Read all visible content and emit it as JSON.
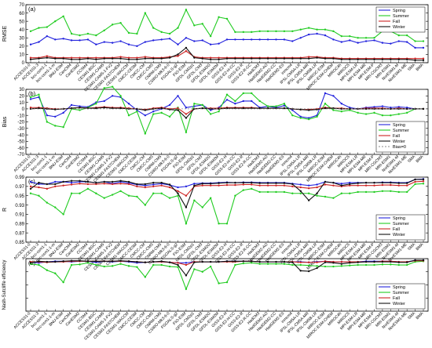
{
  "models": [
    "ACCESS1-0",
    "ACCESS1-3",
    "bcc-csm1-1",
    "bcc-csm1-1-m",
    "BNU-ESM",
    "CanCM4",
    "CanESM2",
    "CCSM4",
    "CESM1-BGC",
    "CESM1-CAM5",
    "CESM1-CAM5-1-FV2",
    "CESM1-FASTCHEM",
    "CESM1-WACCM",
    "CMCC-CESM",
    "CMCC-CM",
    "CMCC-CMS",
    "CNRM-CM5",
    "CSIRO-Mk3-6-0",
    "FGOALS-g2",
    "FIO-ESM",
    "GFDL-CM2p1",
    "GFDL-CM3",
    "GFDL-ESM2G",
    "GFDL-ESM2M",
    "GISS-E2-H",
    "GISS-E2-H-CC",
    "GISS-E2-R",
    "GISS-E2-R-CC",
    "HadCM3",
    "HadGEM2-AO",
    "HadGEM2-CC",
    "HadGEM2-ES",
    "inmcm4",
    "IPSL-CM5A-LR",
    "IPSL-CM5A-MR",
    "IPSL-CM5B-LR",
    "MIROC-ESM",
    "MIROC-ESM-CHEM",
    "MIROC4h",
    "MIROC5",
    "MPI-ESM-LR",
    "MPI-ESM-MR",
    "MPI-ESM-P",
    "MRI-CGCM3",
    "MRI-ESM1",
    "NorESM1-M",
    "NorESM1-ME",
    "SMA",
    "BMA"
  ],
  "colors": {
    "Spring": "#2222dd",
    "Summer": "#22cc22",
    "Fall": "#cc2222",
    "Winter": "#111111"
  },
  "chart_data": [
    {
      "type": "line",
      "panel": "(a)",
      "ylabel": "RMSE",
      "ylim": [
        0,
        70
      ],
      "yticks": [
        0,
        10,
        20,
        30,
        40,
        50,
        60,
        70
      ],
      "legend_position": "top-right",
      "series": [
        {
          "name": "Spring",
          "values": [
            22,
            25,
            32,
            28,
            29,
            27,
            27,
            28,
            22,
            25,
            24,
            26,
            22,
            20,
            25,
            27,
            28,
            29,
            22,
            30,
            26,
            27,
            22,
            23,
            28,
            28,
            28,
            28,
            28,
            28,
            28,
            28,
            26,
            30,
            34,
            35,
            33,
            28,
            25,
            27,
            24,
            26,
            27,
            24,
            23,
            26,
            25,
            18,
            18
          ]
        },
        {
          "name": "Summer",
          "values": [
            38,
            42,
            43,
            50,
            56,
            35,
            33,
            35,
            33,
            39,
            46,
            48,
            36,
            35,
            60,
            42,
            37,
            35,
            42,
            64,
            45,
            47,
            32,
            55,
            53,
            37,
            37,
            37,
            38,
            38,
            38,
            38,
            38,
            40,
            42,
            40,
            40,
            38,
            32,
            32,
            30,
            30,
            30,
            38,
            38,
            33,
            33,
            26,
            26
          ]
        },
        {
          "name": "Fall",
          "values": [
            6,
            6,
            8,
            6,
            6,
            6,
            6,
            6,
            6,
            6,
            6,
            7,
            6,
            6,
            7,
            6,
            6,
            7,
            8,
            14,
            7,
            6,
            6,
            6,
            6,
            6,
            6,
            6,
            6,
            6,
            6,
            6,
            6,
            6,
            7,
            7,
            6,
            6,
            5,
            5,
            5,
            5,
            5,
            5,
            5,
            5,
            5,
            5,
            5
          ]
        },
        {
          "name": "Winter",
          "values": [
            4,
            5,
            6,
            5,
            5,
            4,
            4,
            5,
            4,
            5,
            5,
            5,
            4,
            4,
            5,
            5,
            5,
            6,
            10,
            18,
            6,
            5,
            4,
            4,
            5,
            5,
            5,
            5,
            5,
            5,
            5,
            5,
            5,
            5,
            5,
            6,
            5,
            5,
            4,
            4,
            4,
            4,
            4,
            4,
            4,
            4,
            4,
            3,
            3
          ]
        }
      ]
    },
    {
      "type": "line",
      "panel": "(b)",
      "ylabel": "Bias",
      "ylim": [
        -70,
        30
      ],
      "yticks": [
        -70,
        -60,
        -50,
        -40,
        -30,
        -20,
        -10,
        0,
        10,
        20,
        30
      ],
      "legend_position": "bottom-right",
      "series": [
        {
          "name": "Spring",
          "values": [
            15,
            18,
            -10,
            -12,
            -6,
            6,
            4,
            3,
            10,
            12,
            20,
            18,
            8,
            -2,
            -10,
            -4,
            0,
            6,
            20,
            2,
            4,
            6,
            -2,
            2,
            14,
            8,
            12,
            12,
            2,
            4,
            2,
            5,
            -2,
            -12,
            -14,
            -10,
            24,
            20,
            8,
            2,
            0,
            2,
            3,
            4,
            2,
            3,
            2,
            0,
            0
          ]
        },
        {
          "name": "Summer",
          "values": [
            18,
            22,
            -20,
            -26,
            -28,
            0,
            -2,
            2,
            8,
            32,
            34,
            20,
            -10,
            -4,
            -38,
            -8,
            -6,
            -12,
            2,
            -36,
            8,
            6,
            -8,
            -4,
            22,
            12,
            24,
            24,
            12,
            4,
            4,
            8,
            -10,
            -14,
            -16,
            -12,
            8,
            -2,
            -4,
            -2,
            -6,
            -8,
            -6,
            -10,
            -10,
            -8,
            -6,
            0,
            0
          ]
        },
        {
          "name": "Fall",
          "values": [
            2,
            2,
            1,
            0,
            0,
            1,
            2,
            1,
            2,
            3,
            2,
            2,
            1,
            0,
            -1,
            1,
            2,
            0,
            1,
            -8,
            0,
            1,
            1,
            1,
            2,
            2,
            2,
            2,
            1,
            1,
            1,
            1,
            0,
            -1,
            -1,
            0,
            2,
            1,
            1,
            0,
            0,
            1,
            1,
            1,
            0,
            1,
            0,
            0,
            0
          ]
        },
        {
          "name": "Winter",
          "values": [
            0,
            1,
            0,
            -1,
            0,
            1,
            2,
            1,
            1,
            2,
            1,
            1,
            0,
            0,
            -2,
            0,
            1,
            -1,
            -2,
            -14,
            0,
            1,
            0,
            0,
            1,
            1,
            1,
            1,
            1,
            1,
            1,
            1,
            0,
            -1,
            -2,
            -1,
            1,
            1,
            0,
            0,
            0,
            0,
            0,
            0,
            0,
            0,
            0,
            0,
            0
          ]
        },
        {
          "name": "Bias=0",
          "values": [
            0,
            0,
            0,
            0,
            0,
            0,
            0,
            0,
            0,
            0,
            0,
            0,
            0,
            0,
            0,
            0,
            0,
            0,
            0,
            0,
            0,
            0,
            0,
            0,
            0,
            0,
            0,
            0,
            0,
            0,
            0,
            0,
            0,
            0,
            0,
            0,
            0,
            0,
            0,
            0,
            0,
            0,
            0,
            0,
            0,
            0,
            0,
            0,
            0
          ]
        }
      ]
    },
    {
      "type": "line",
      "panel": "(c)",
      "ylabel": "R",
      "ylim": [
        0.85,
        0.99
      ],
      "yticks": [
        0.85,
        0.87,
        0.89,
        0.91,
        0.93,
        0.95,
        0.97,
        0.99
      ],
      "legend_position": "bottom-right",
      "series": [
        {
          "name": "Spring",
          "values": [
            0.98,
            0.975,
            0.975,
            0.98,
            0.98,
            0.978,
            0.98,
            0.98,
            0.978,
            0.98,
            0.976,
            0.98,
            0.977,
            0.974,
            0.972,
            0.974,
            0.976,
            0.973,
            0.968,
            0.97,
            0.976,
            0.977,
            0.977,
            0.978,
            0.979,
            0.978,
            0.979,
            0.979,
            0.978,
            0.978,
            0.978,
            0.978,
            0.976,
            0.974,
            0.972,
            0.974,
            0.98,
            0.978,
            0.976,
            0.978,
            0.978,
            0.978,
            0.978,
            0.979,
            0.979,
            0.978,
            0.978,
            0.985,
            0.986
          ]
        },
        {
          "name": "Summer",
          "values": [
            0.955,
            0.95,
            0.935,
            0.925,
            0.91,
            0.955,
            0.955,
            0.965,
            0.955,
            0.945,
            0.952,
            0.96,
            0.95,
            0.948,
            0.93,
            0.955,
            0.955,
            0.945,
            0.95,
            0.89,
            0.94,
            0.925,
            0.945,
            0.89,
            0.89,
            0.95,
            0.962,
            0.965,
            0.958,
            0.958,
            0.958,
            0.958,
            0.955,
            0.955,
            0.955,
            0.95,
            0.948,
            0.945,
            0.955,
            0.955,
            0.958,
            0.958,
            0.958,
            0.96,
            0.96,
            0.958,
            0.958,
            0.975,
            0.976
          ]
        },
        {
          "name": "Fall",
          "values": [
            0.97,
            0.968,
            0.965,
            0.97,
            0.972,
            0.974,
            0.976,
            0.975,
            0.975,
            0.976,
            0.975,
            0.976,
            0.975,
            0.97,
            0.968,
            0.97,
            0.972,
            0.968,
            0.96,
            0.95,
            0.97,
            0.972,
            0.972,
            0.972,
            0.973,
            0.973,
            0.974,
            0.974,
            0.972,
            0.972,
            0.972,
            0.972,
            0.97,
            0.968,
            0.966,
            0.968,
            0.974,
            0.972,
            0.97,
            0.972,
            0.972,
            0.972,
            0.972,
            0.973,
            0.973,
            0.972,
            0.972,
            0.98,
            0.981
          ]
        },
        {
          "name": "Winter",
          "values": [
            0.965,
            0.978,
            0.975,
            0.975,
            0.98,
            0.982,
            0.982,
            0.98,
            0.978,
            0.98,
            0.98,
            0.982,
            0.98,
            0.975,
            0.975,
            0.978,
            0.978,
            0.974,
            0.955,
            0.925,
            0.972,
            0.976,
            0.976,
            0.977,
            0.978,
            0.978,
            0.978,
            0.978,
            0.977,
            0.977,
            0.977,
            0.977,
            0.975,
            0.96,
            0.94,
            0.955,
            0.98,
            0.978,
            0.972,
            0.975,
            0.977,
            0.978,
            0.978,
            0.978,
            0.978,
            0.977,
            0.977,
            0.985,
            0.985
          ]
        }
      ]
    },
    {
      "type": "line",
      "panel": "(d)",
      "ylabel": "Nash-Sutcliffe efficiency",
      "ylim": [
        0.0,
        1.0
      ],
      "legend_position": "bottom-right",
      "series": [
        {
          "name": "Spring",
          "values": [
            0.93,
            0.92,
            0.94,
            0.95,
            0.95,
            0.94,
            0.95,
            0.95,
            0.93,
            0.95,
            0.94,
            0.95,
            0.94,
            0.92,
            0.93,
            0.94,
            0.94,
            0.93,
            0.92,
            0.92,
            0.94,
            0.94,
            0.94,
            0.94,
            0.95,
            0.95,
            0.95,
            0.95,
            0.94,
            0.94,
            0.94,
            0.94,
            0.94,
            0.94,
            0.93,
            0.94,
            0.95,
            0.94,
            0.94,
            0.94,
            0.94,
            0.95,
            0.95,
            0.95,
            0.95,
            0.94,
            0.94,
            0.97,
            0.97
          ]
        },
        {
          "name": "Summer",
          "values": [
            0.9,
            0.88,
            0.78,
            0.72,
            0.55,
            0.88,
            0.89,
            0.92,
            0.88,
            0.85,
            0.86,
            0.9,
            0.86,
            0.84,
            0.65,
            0.88,
            0.88,
            0.85,
            0.84,
            0.42,
            0.8,
            0.75,
            0.85,
            0.53,
            0.55,
            0.88,
            0.91,
            0.92,
            0.9,
            0.9,
            0.9,
            0.9,
            0.88,
            0.88,
            0.87,
            0.86,
            0.85,
            0.85,
            0.86,
            0.87,
            0.88,
            0.88,
            0.88,
            0.89,
            0.89,
            0.88,
            0.88,
            0.94,
            0.95
          ]
        },
        {
          "name": "Fall",
          "values": [
            0.94,
            0.94,
            0.93,
            0.94,
            0.94,
            0.95,
            0.95,
            0.95,
            0.95,
            0.95,
            0.95,
            0.95,
            0.95,
            0.94,
            0.93,
            0.94,
            0.94,
            0.93,
            0.92,
            0.88,
            0.94,
            0.94,
            0.94,
            0.94,
            0.94,
            0.94,
            0.95,
            0.95,
            0.94,
            0.94,
            0.94,
            0.94,
            0.94,
            0.93,
            0.93,
            0.93,
            0.95,
            0.94,
            0.94,
            0.94,
            0.94,
            0.94,
            0.94,
            0.95,
            0.95,
            0.94,
            0.94,
            0.96,
            0.96
          ]
        },
        {
          "name": "Winter",
          "values": [
            0.92,
            0.95,
            0.94,
            0.94,
            0.95,
            0.96,
            0.96,
            0.95,
            0.95,
            0.95,
            0.95,
            0.96,
            0.95,
            0.94,
            0.93,
            0.94,
            0.95,
            0.93,
            0.88,
            0.68,
            0.93,
            0.94,
            0.94,
            0.94,
            0.95,
            0.95,
            0.95,
            0.95,
            0.94,
            0.94,
            0.94,
            0.94,
            0.93,
            0.77,
            0.76,
            0.82,
            0.93,
            0.92,
            0.9,
            0.92,
            0.93,
            0.94,
            0.94,
            0.94,
            0.94,
            0.93,
            0.93,
            0.97,
            0.97
          ]
        }
      ]
    }
  ]
}
